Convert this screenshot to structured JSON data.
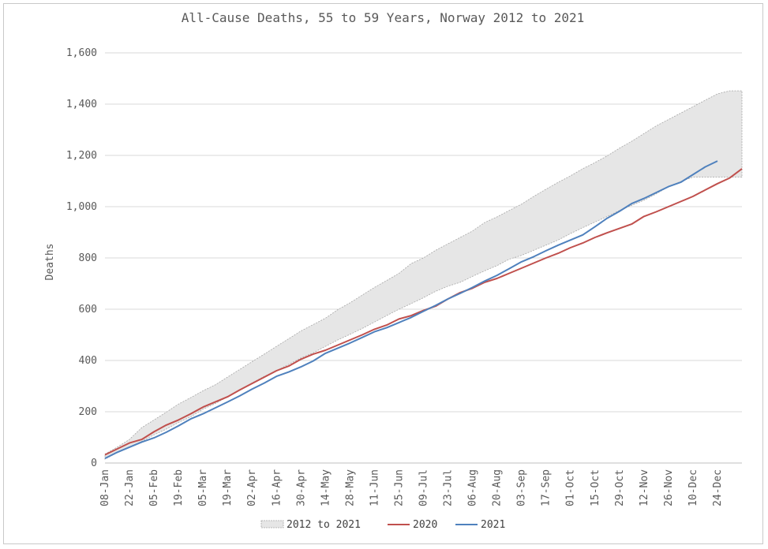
{
  "chart_data": {
    "type": "area",
    "title": "All-Cause Deaths, 55 to 59 Years, Norway 2012 to 2021",
    "xlabel": "",
    "ylabel": "Deaths",
    "ylim": [
      0,
      1600
    ],
    "yticks": [
      0,
      200,
      400,
      600,
      800,
      1000,
      1200,
      1400,
      1600
    ],
    "ytick_labels": [
      "0",
      "200",
      "400",
      "600",
      "800",
      "1,000",
      "1,200",
      "1,400",
      "1,600"
    ],
    "xtick_labels": [
      "08-Jan",
      "22-Jan",
      "05-Feb",
      "19-Feb",
      "05-Mar",
      "19-Mar",
      "02-Apr",
      "16-Apr",
      "30-Apr",
      "14-May",
      "28-May",
      "11-Jun",
      "25-Jun",
      "09-Jul",
      "23-Jul",
      "06-Aug",
      "20-Aug",
      "03-Sep",
      "17-Sep",
      "01-Oct",
      "15-Oct",
      "29-Oct",
      "12-Nov",
      "26-Nov",
      "10-Dec",
      "24-Dec"
    ],
    "x_weeks": [
      1,
      2,
      3,
      4,
      5,
      6,
      7,
      8,
      9,
      10,
      11,
      12,
      13,
      14,
      15,
      16,
      17,
      18,
      19,
      20,
      21,
      22,
      23,
      24,
      25,
      26,
      27,
      28,
      29,
      30,
      31,
      32,
      33,
      34,
      35,
      36,
      37,
      38,
      39,
      40,
      41,
      42,
      43,
      44,
      45,
      46,
      47,
      48,
      49,
      50,
      51,
      52,
      53
    ],
    "grid": true,
    "legend_position": "bottom",
    "series": [
      {
        "name": "2012 to 2021",
        "kind": "range",
        "color": "#e6e6e6",
        "upper": [
          35,
          62,
          92,
          138,
          168,
          198,
          230,
          255,
          282,
          305,
          335,
          365,
          395,
          425,
          455,
          485,
          515,
          540,
          565,
          598,
          625,
          655,
          685,
          712,
          740,
          778,
          800,
          830,
          855,
          880,
          905,
          938,
          960,
          985,
          1010,
          1040,
          1068,
          1095,
          1120,
          1148,
          1172,
          1198,
          1228,
          1255,
          1285,
          1315,
          1340,
          1365,
          1390,
          1415,
          1440,
          1452,
          1452
        ],
        "lower": [
          15,
          40,
          62,
          85,
          110,
          132,
          158,
          180,
          210,
          232,
          258,
          285,
          312,
          338,
          360,
          385,
          410,
          430,
          455,
          480,
          502,
          525,
          550,
          575,
          600,
          622,
          645,
          670,
          690,
          705,
          728,
          750,
          770,
          795,
          810,
          830,
          850,
          870,
          895,
          918,
          940,
          962,
          985,
          1005,
          1025,
          1050,
          1078,
          1098,
          1115,
          1115,
          1115,
          1115,
          1115
        ]
      },
      {
        "name": "2020",
        "color": "#c0504d",
        "values": [
          32,
          55,
          78,
          92,
          122,
          148,
          168,
          192,
          218,
          238,
          258,
          285,
          310,
          335,
          360,
          378,
          405,
          425,
          440,
          460,
          480,
          500,
          522,
          538,
          562,
          575,
          595,
          612,
          640,
          665,
          682,
          705,
          720,
          740,
          760,
          780,
          800,
          818,
          840,
          858,
          880,
          898,
          915,
          932,
          962,
          980,
          1000,
          1020,
          1040,
          1065,
          1090,
          1112,
          1148
        ]
      },
      {
        "name": "2021",
        "color": "#4f81bd",
        "values": [
          18,
          42,
          62,
          82,
          98,
          120,
          145,
          172,
          192,
          215,
          238,
          262,
          288,
          312,
          338,
          355,
          375,
          398,
          428,
          448,
          468,
          490,
          512,
          528,
          548,
          568,
          592,
          615,
          640,
          662,
          685,
          710,
          732,
          758,
          785,
          805,
          828,
          850,
          870,
          890,
          922,
          955,
          982,
          1012,
          1032,
          1055,
          1078,
          1095,
          1125,
          1155,
          1178
        ]
      }
    ]
  }
}
